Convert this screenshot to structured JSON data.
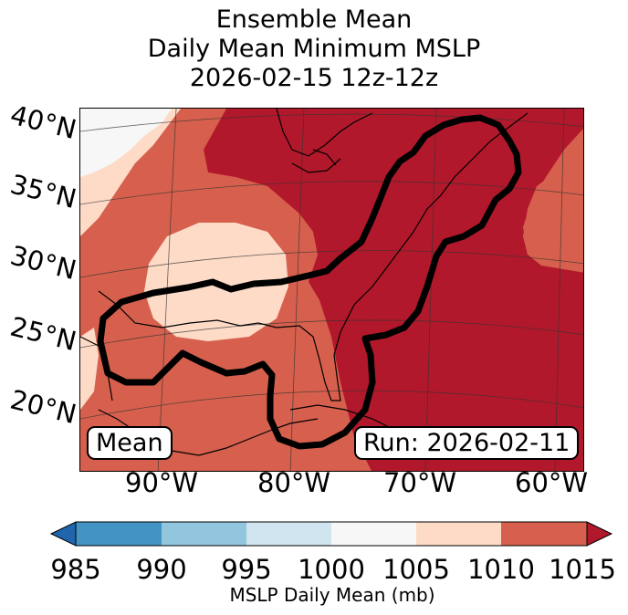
{
  "title": {
    "line1": "Ensemble Mean",
    "line2": "Daily Mean Minimum MSLP",
    "line3": "2026-02-15 12z-12z"
  },
  "map": {
    "lat_labels": [
      "40°N",
      "35°N",
      "30°N",
      "25°N",
      "20°N"
    ],
    "lon_labels": [
      "90°W",
      "80°W",
      "70°W",
      "60°W"
    ],
    "mean_box": "Mean",
    "run_box": "Run: 2026-02-11"
  },
  "colorbar": {
    "label": "MSLP Daily Mean (mb)",
    "ticks": [
      "985",
      "990",
      "995",
      "1000",
      "1005",
      "1010",
      "1015"
    ],
    "colors": [
      "#2166ac",
      "#4393c3",
      "#92c5de",
      "#d1e5f0",
      "#f7f7f7",
      "#fddbc7",
      "#d6604d",
      "#b2182b"
    ]
  },
  "colors": {
    "bin_1000_1005": "#f7f7f7",
    "bin_1005_1010": "#fddbc7",
    "bin_1010_1015": "#d6604d",
    "bin_above_1015": "#b2182b",
    "contour": "#000000"
  }
}
